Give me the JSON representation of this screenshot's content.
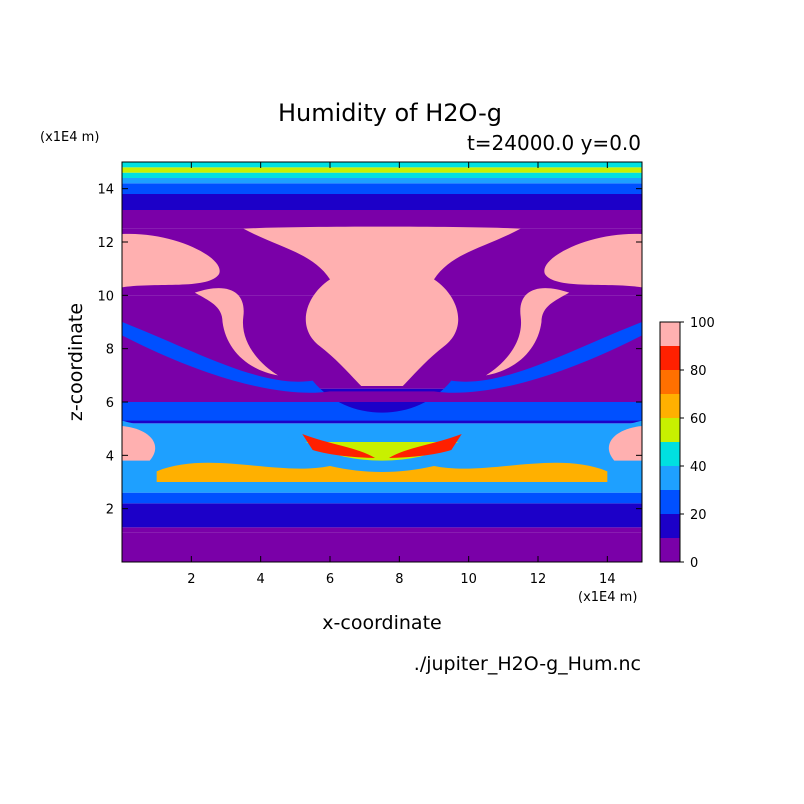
{
  "chart_data": {
    "type": "heatmap",
    "title": "Humidity of H2O-g",
    "subtitle": "t=24000.0 y=0.0",
    "xlabel": "x-coordinate",
    "ylabel": "z-coordinate",
    "x_unit": "(x1E4 m)",
    "y_unit": "(x1E4 m)",
    "source_file": "./jupiter_H2O-g_Hum.nc",
    "xlim": [
      0,
      15
    ],
    "ylim": [
      0,
      15
    ],
    "x_ticks": [
      2,
      4,
      6,
      8,
      10,
      12,
      14
    ],
    "y_ticks": [
      2,
      4,
      6,
      8,
      10,
      12,
      14
    ],
    "colorbar": {
      "levels": [
        0,
        10,
        20,
        30,
        40,
        50,
        60,
        70,
        80,
        90,
        100
      ],
      "tick_labels": [
        "0",
        "20",
        "40",
        "60",
        "80",
        "100"
      ],
      "colors": [
        "#7a00a8",
        "#1c00c8",
        "#0050ff",
        "#1ea0ff",
        "#00e0e0",
        "#c8f000",
        "#ffb000",
        "#ff7000",
        "#ff2000",
        "#ffb0b0"
      ]
    },
    "z_profile_horizontal_mean": [
      {
        "z": 0.0,
        "value": 5
      },
      {
        "z": 1.1,
        "value": 5
      },
      {
        "z": 1.3,
        "value": 15
      },
      {
        "z": 2.2,
        "value": 25
      },
      {
        "z": 2.6,
        "value": 35
      },
      {
        "z": 3.0,
        "value": 55
      },
      {
        "z": 4.5,
        "value": 35
      },
      {
        "z": 5.2,
        "value": 15
      },
      {
        "z": 6.5,
        "value": 5
      },
      {
        "z": 10.0,
        "value": 5
      },
      {
        "z": 12.5,
        "value": 5
      },
      {
        "z": 13.2,
        "value": 15
      },
      {
        "z": 13.8,
        "value": 25
      },
      {
        "z": 14.2,
        "value": 35
      },
      {
        "z": 14.4,
        "value": 45
      },
      {
        "z": 14.6,
        "value": 55
      },
      {
        "z": 14.8,
        "value": 45
      }
    ],
    "saturated_regions": [
      {
        "name": "central plume",
        "value": 100
      },
      {
        "name": "left upper lobe",
        "value": 100
      },
      {
        "name": "right upper lobe",
        "value": 100
      },
      {
        "name": "left hook",
        "value": 100
      },
      {
        "name": "right hook",
        "value": 100
      }
    ]
  },
  "colors": {
    "background": "#ffffff",
    "frame": "#000000"
  }
}
